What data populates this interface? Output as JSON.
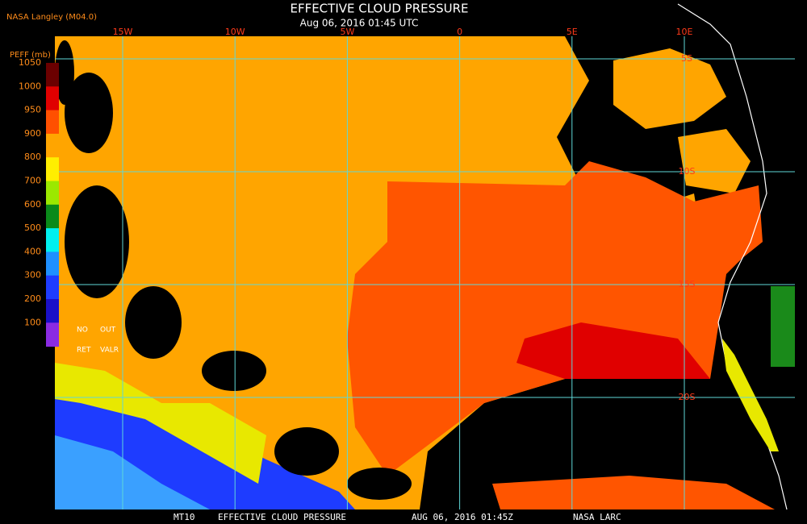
{
  "header": {
    "title": "EFFECTIVE CLOUD PRESSURE",
    "subtitle": "Aug 06, 2016 01:45 UTC",
    "source": "NASA Langley (M04.0)"
  },
  "colorbar": {
    "label": "PEFF (mb)",
    "ticks": [
      1050,
      1000,
      950,
      900,
      800,
      700,
      600,
      500,
      400,
      300,
      200,
      100
    ],
    "no_ret": [
      "NO",
      "RET"
    ],
    "out_valr": [
      "OUT",
      "VALR"
    ]
  },
  "map": {
    "longitudes": [
      "15W",
      "10W",
      "5W",
      "0",
      "5E",
      "10E"
    ],
    "latitudes": [
      "5S",
      "10S",
      "15S",
      "20S"
    ]
  },
  "footer": [
    "MT10",
    "EFFECTIVE CLOUD PRESSURE",
    "AUG 06, 2016 01:45Z",
    "NASA LARC"
  ]
}
